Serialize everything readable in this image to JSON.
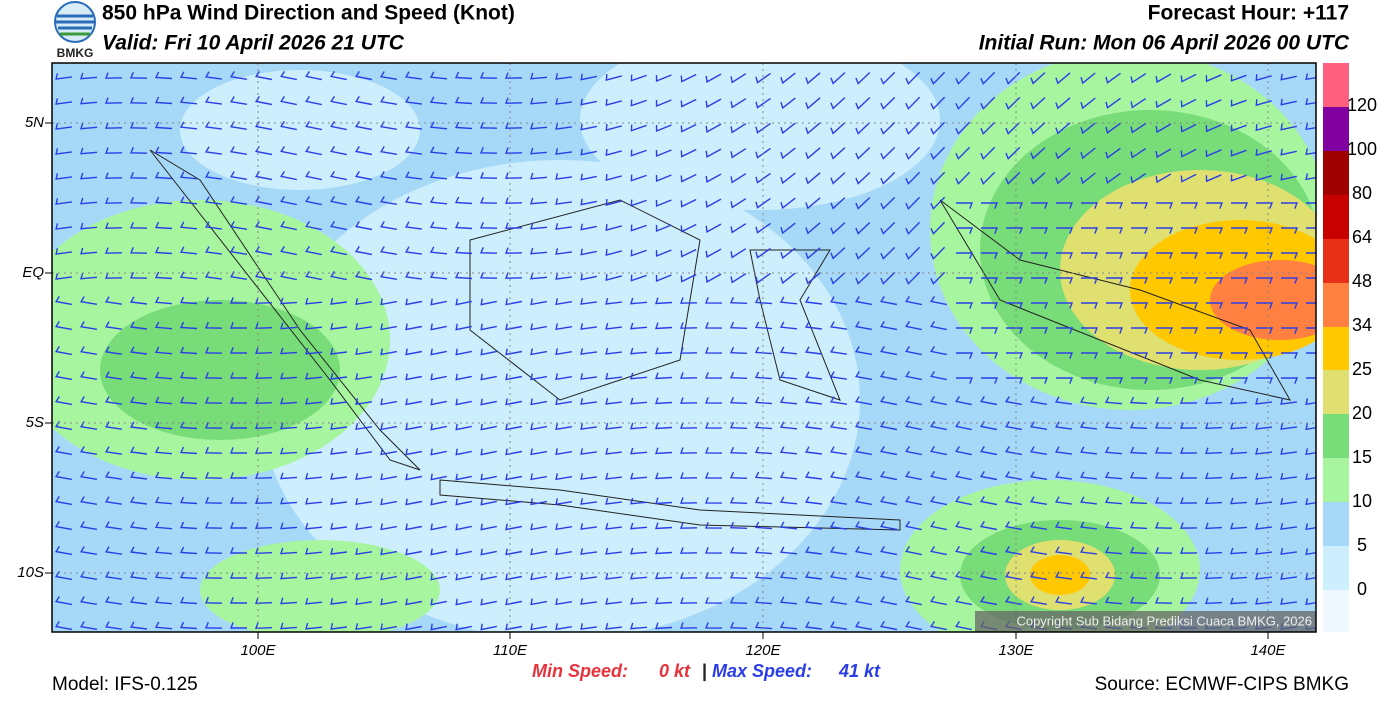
{
  "header": {
    "logo": "BMKG",
    "title": "850 hPa Wind Direction and Speed (Knot)",
    "valid": "Valid: Fri 10 April 2026 21 UTC",
    "forecast_hour": "Forecast Hour: +117",
    "initial_run": "Initial Run: Mon 06 April 2026 00 UTC"
  },
  "map": {
    "lat_labels": [
      "5N",
      "EQ",
      "5S",
      "10S"
    ],
    "lon_labels": [
      "100E",
      "110E",
      "120E",
      "130E",
      "140E"
    ],
    "copyright": "Copyright Sub Bidang Prediksi Cuaca BMKG, 2026"
  },
  "colorbar": {
    "labels": [
      "0",
      "5",
      "10",
      "15",
      "20",
      "25",
      "34",
      "48",
      "64",
      "80",
      "100",
      "120"
    ]
  },
  "footer": {
    "min_label": "Min Speed:",
    "min_value": "0 kt",
    "separator": "|",
    "max_label": "Max Speed:",
    "max_value": "41 kt",
    "model": "Model: IFS-0.125",
    "source": "Source: ECMWF-CIPS BMKG"
  }
}
